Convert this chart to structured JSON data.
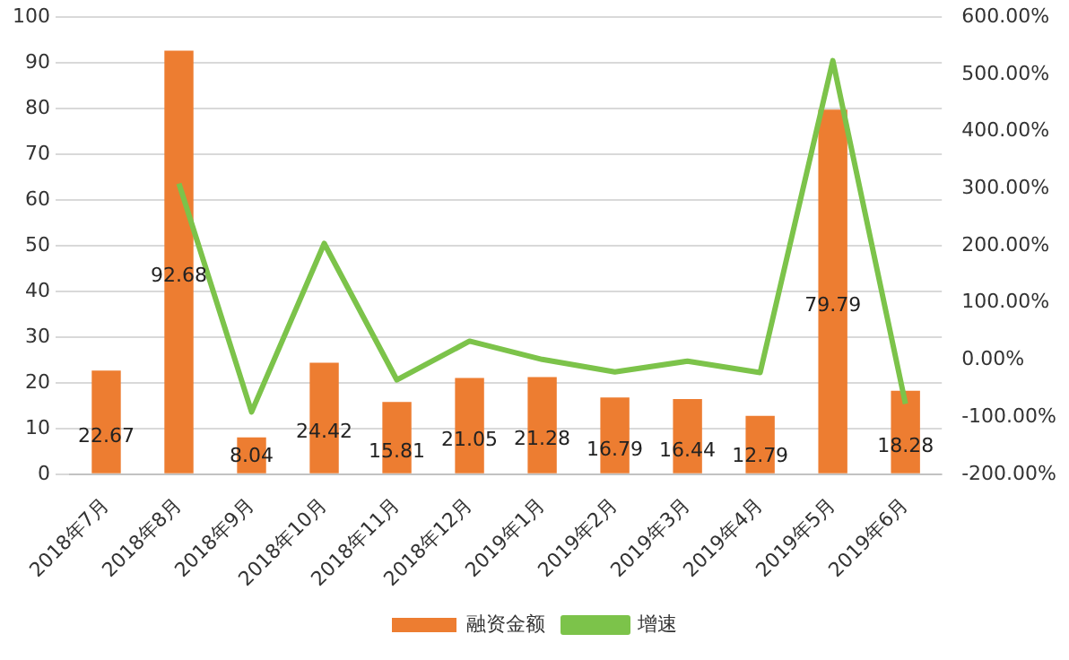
{
  "chart_data": {
    "type": "bar",
    "categories": [
      "2018年7月",
      "2018年8月",
      "2018年9月",
      "2018年10月",
      "2018年11月",
      "2018年12月",
      "2019年1月",
      "2019年2月",
      "2019年3月",
      "2019年4月",
      "2019年5月",
      "2019年6月"
    ],
    "series": [
      {
        "name": "融资金额",
        "color": "#ed7d31",
        "values": [
          22.67,
          92.68,
          8.04,
          24.42,
          15.81,
          21.05,
          21.28,
          16.79,
          16.44,
          12.79,
          79.79,
          18.28
        ],
        "data_labels": true
      },
      {
        "name": "增速",
        "type": "line",
        "axis": "y2",
        "color": "#7cc34a",
        "values": [
          null,
          309,
          -91,
          204,
          -35,
          33,
          1,
          -21,
          -2,
          -22,
          524,
          -77
        ],
        "marker": "none"
      }
    ],
    "ylim": [
      0,
      100
    ],
    "yticks": [
      0,
      10,
      20,
      30,
      40,
      50,
      60,
      70,
      80,
      90,
      100
    ],
    "y2lim": [
      -200,
      600
    ],
    "y2ticks": [
      {
        "value": -200,
        "label": "-200.00%"
      },
      {
        "value": -100,
        "label": "-100.00%"
      },
      {
        "value": 0,
        "label": "0.00%"
      },
      {
        "value": 100,
        "label": "100.00%"
      },
      {
        "value": 200,
        "label": "200.00%"
      },
      {
        "value": 300,
        "label": "300.00%"
      },
      {
        "value": 400,
        "label": "400.00%"
      },
      {
        "value": 500,
        "label": "500.00%"
      },
      {
        "value": 600,
        "label": "600.00%"
      }
    ],
    "grid": "y",
    "legend": "bottom"
  }
}
